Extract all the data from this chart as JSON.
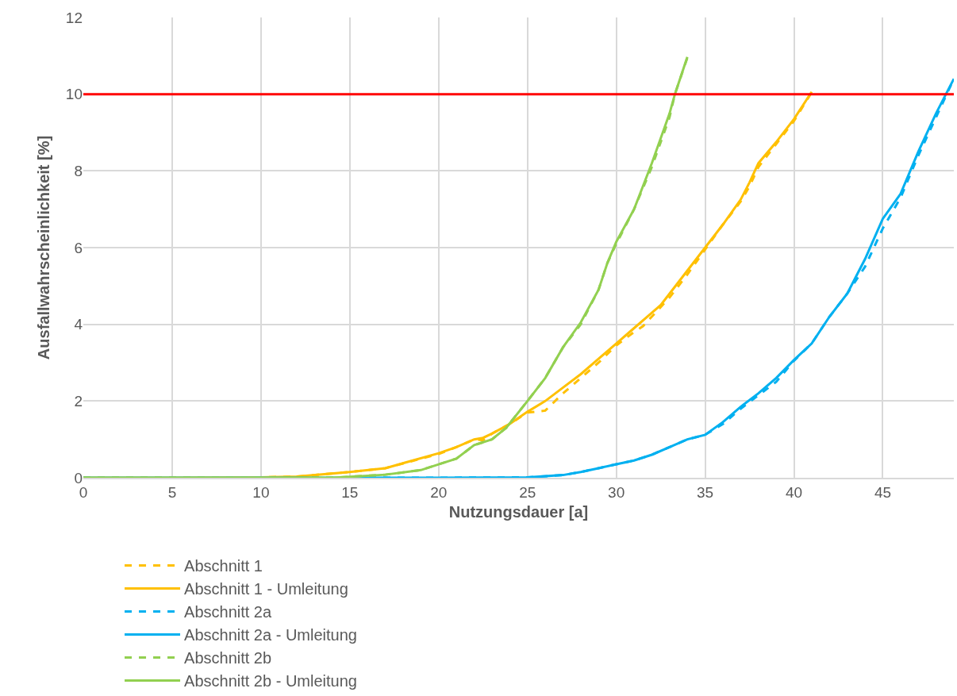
{
  "chart_data": {
    "type": "line",
    "xlabel": "Nutzungsdauer [a]",
    "ylabel": "Ausfallwahrscheinlichkeit [%]",
    "xlim": [
      0,
      49
    ],
    "ylim": [
      0,
      12
    ],
    "xticks": [
      0,
      5,
      10,
      15,
      20,
      25,
      30,
      35,
      40,
      45
    ],
    "yticks": [
      0,
      2,
      4,
      6,
      8,
      10,
      12
    ],
    "grid": true,
    "legend": "bottom",
    "marker": "none",
    "series": [
      {
        "name": "Abschnitt 1",
        "color": "#ffc000",
        "line_style": "dashed",
        "x": [
          0,
          5,
          10,
          12,
          15,
          17,
          20,
          21,
          22,
          22.5,
          23,
          24,
          25,
          26,
          27,
          28,
          29,
          30,
          31,
          31.5,
          32.3,
          33,
          34,
          35,
          36,
          37,
          37.5,
          38,
          39,
          40,
          41
        ],
        "values": [
          0,
          0,
          0.01,
          0.03,
          0.15,
          0.25,
          0.62,
          0.8,
          1.0,
          0.98,
          1.15,
          1.4,
          1.7,
          1.75,
          2.2,
          2.6,
          3.0,
          3.45,
          3.8,
          3.95,
          4.35,
          4.7,
          5.3,
          5.95,
          6.6,
          7.2,
          7.6,
          8.1,
          8.7,
          9.3,
          10.05
        ]
      },
      {
        "name": "Abschnitt 1 - Umleitung",
        "color": "#ffc000",
        "line_style": "solid",
        "x": [
          0,
          5,
          10,
          12,
          15,
          17,
          20,
          21,
          22,
          22.5,
          23,
          24,
          25,
          26,
          27,
          28,
          29,
          30,
          31,
          32,
          32.5,
          33,
          34,
          35,
          36,
          37,
          37.5,
          38,
          39,
          40,
          41
        ],
        "values": [
          0,
          0,
          0.01,
          0.03,
          0.15,
          0.25,
          0.64,
          0.8,
          1.0,
          1.04,
          1.15,
          1.4,
          1.72,
          2.0,
          2.35,
          2.7,
          3.1,
          3.5,
          3.9,
          4.3,
          4.5,
          4.8,
          5.4,
          6.0,
          6.6,
          7.25,
          7.7,
          8.2,
          8.75,
          9.35,
          10.06
        ]
      },
      {
        "name": "Abschnitt 2a",
        "color": "#00b0f0",
        "line_style": "dashed",
        "x": [
          0,
          10,
          20,
          25,
          27,
          28,
          29,
          30,
          31,
          32,
          33,
          34,
          35,
          36,
          37,
          38,
          39,
          40,
          41,
          42,
          43,
          44,
          45,
          46,
          47,
          48,
          49
        ],
        "values": [
          0,
          0,
          0,
          0.01,
          0.07,
          0.15,
          0.25,
          0.35,
          0.45,
          0.6,
          0.8,
          1.0,
          1.12,
          1.4,
          1.8,
          2.15,
          2.5,
          3.05,
          3.5,
          4.2,
          4.8,
          5.5,
          6.5,
          7.3,
          8.4,
          9.4,
          10.4
        ]
      },
      {
        "name": "Abschnitt 2a - Umleitung",
        "color": "#00b0f0",
        "line_style": "solid",
        "x": [
          0,
          10,
          20,
          25,
          27,
          28,
          29,
          30,
          31,
          32,
          33,
          34,
          35,
          36,
          37,
          38,
          39,
          40,
          41,
          42,
          43,
          44,
          45,
          46,
          47,
          48,
          49
        ],
        "values": [
          0,
          0,
          0,
          0.01,
          0.07,
          0.15,
          0.25,
          0.35,
          0.45,
          0.6,
          0.8,
          1.0,
          1.12,
          1.45,
          1.85,
          2.2,
          2.6,
          3.07,
          3.5,
          4.2,
          4.8,
          5.7,
          6.75,
          7.4,
          8.5,
          9.5,
          10.4
        ]
      },
      {
        "name": "Abschnitt 2b",
        "color": "#92d050",
        "line_style": "dashed",
        "x": [
          0,
          10,
          14,
          17,
          19,
          20,
          21,
          22,
          23,
          23.8,
          25,
          26,
          27,
          28,
          29,
          29.5,
          30,
          31,
          32,
          33,
          33.3,
          34
        ],
        "values": [
          0,
          0,
          0,
          0.08,
          0.2,
          0.35,
          0.5,
          0.85,
          1.0,
          1.3,
          2.0,
          2.6,
          3.4,
          4.0,
          4.9,
          5.6,
          6.1,
          7.0,
          8.1,
          9.4,
          10,
          10.95
        ]
      },
      {
        "name": "Abschnitt 2b - Umleitung",
        "color": "#92d050",
        "line_style": "solid",
        "x": [
          0,
          10,
          14,
          17,
          19,
          20,
          21,
          22,
          23,
          23.8,
          25,
          26,
          27,
          28,
          29,
          29.5,
          30,
          31,
          32,
          33,
          33.3,
          34
        ],
        "values": [
          0,
          0,
          0,
          0.08,
          0.2,
          0.35,
          0.5,
          0.85,
          1.0,
          1.3,
          2.0,
          2.6,
          3.4,
          4.05,
          4.9,
          5.6,
          6.15,
          7.0,
          8.2,
          9.5,
          10,
          10.97
        ]
      }
    ],
    "ref_lines": [
      {
        "axis": "y",
        "value": 10,
        "color": "#ff0000",
        "line_style": "solid"
      }
    ]
  }
}
